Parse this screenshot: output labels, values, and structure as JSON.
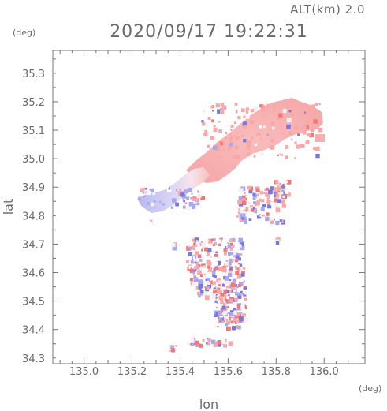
{
  "header": {
    "alt_label": "ALT(km) 2.0",
    "datetime": "2020/09/17 19:22:31"
  },
  "axes": {
    "x_unit": "(deg)",
    "y_unit": "(deg)",
    "x_title": "lon",
    "y_title": "lat",
    "x_ticks": [
      "135.0",
      "135.2",
      "135.4",
      "135.6",
      "135.8",
      "136.0"
    ],
    "y_ticks": [
      "35.3",
      "35.2",
      "35.1",
      "35.0",
      "34.9",
      "34.8",
      "34.7",
      "34.6",
      "34.5",
      "34.4",
      "34.3"
    ]
  },
  "chart_data": {
    "type": "heatmap",
    "x_range": [
      134.87,
      136.17
    ],
    "y_range": [
      34.28,
      35.38
    ],
    "x_tick_values": [
      135.0,
      135.2,
      135.4,
      135.6,
      135.8,
      136.0
    ],
    "y_tick_values": [
      35.3,
      35.2,
      35.1,
      35.0,
      34.9,
      34.8,
      34.7,
      34.6,
      34.5,
      34.4,
      34.3
    ],
    "grid": false,
    "colors": {
      "positive": "#f8a8a8",
      "negative": "#a8a8f0",
      "neutral": "#f4f0f4",
      "axis": "#777777"
    }
  }
}
